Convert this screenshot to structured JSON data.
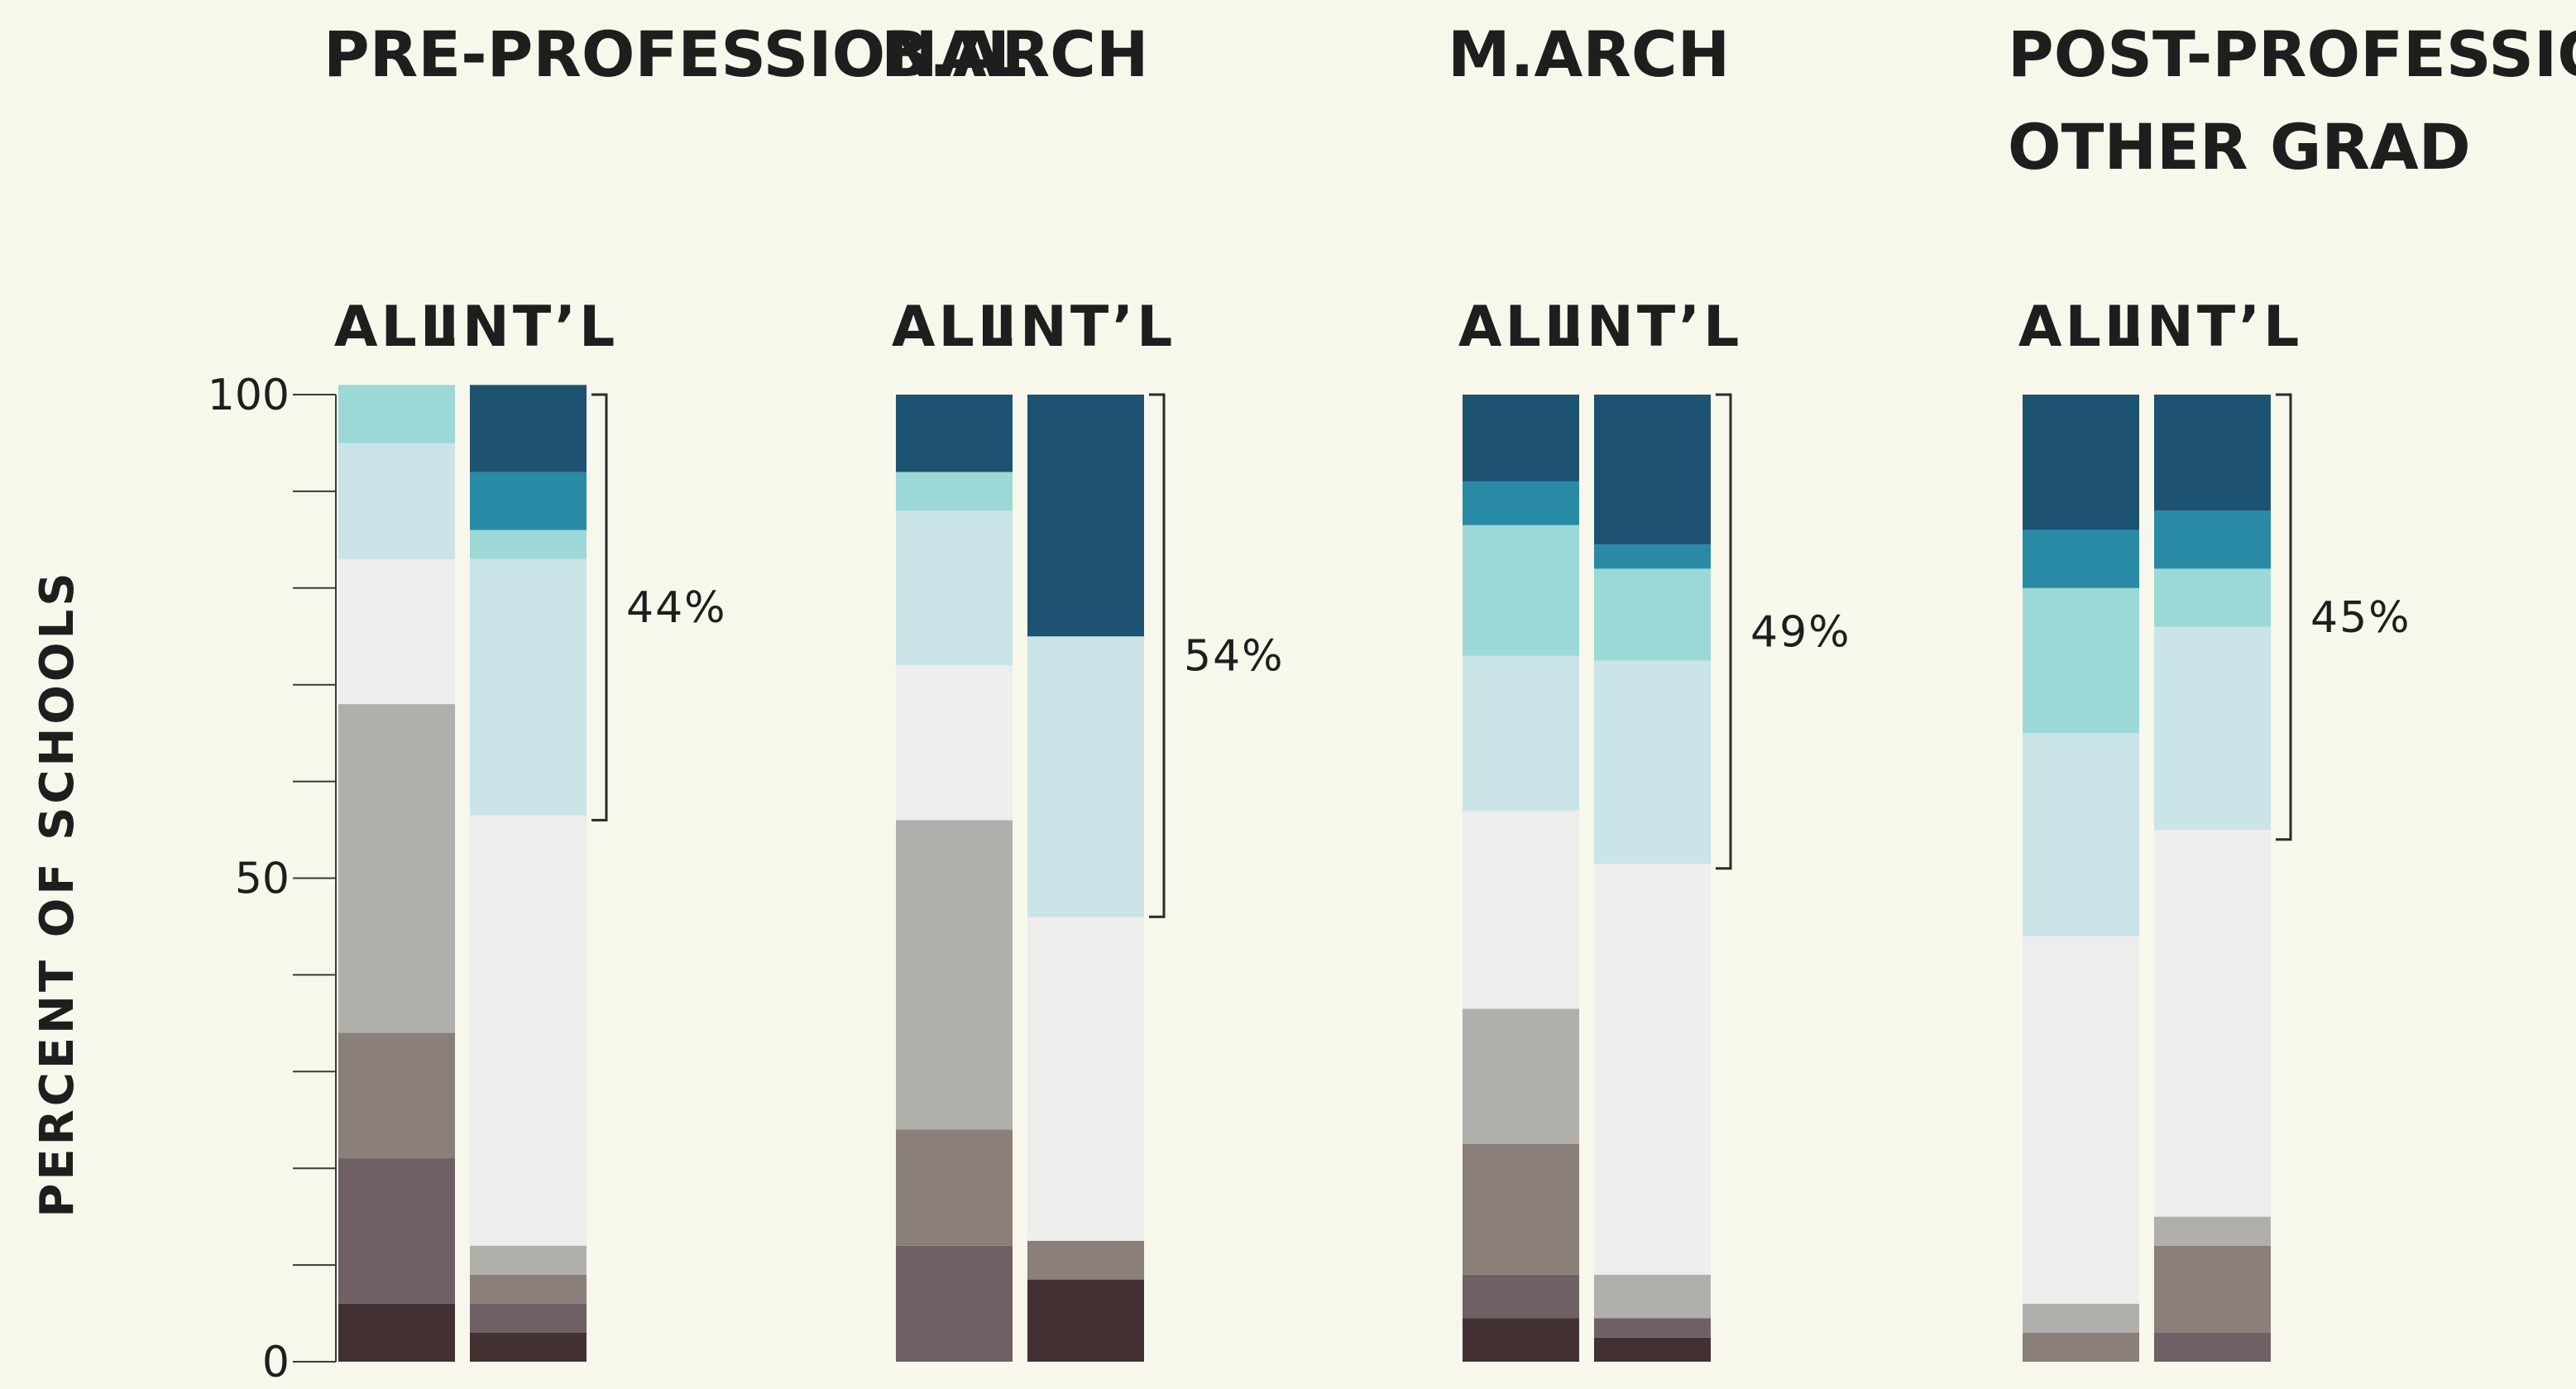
{
  "chart_data": {
    "type": "bar",
    "stacked": true,
    "ylabel": "PERCENT OF SCHOOLS",
    "ylim": [
      0,
      100
    ],
    "yticks": [
      "100",
      "50",
      "0"
    ],
    "bar_labels": [
      "ALL",
      "INT’L"
    ],
    "colors": [
      "#433032",
      "#6e6064",
      "#8a7f79",
      "#b0afab",
      "#ededec",
      "#cae4e7",
      "#9cd8d6",
      "#298aa5",
      "#1d5370"
    ],
    "groups": [
      {
        "title_lines": [
          "PRE-PROFESSIONAL"
        ],
        "bracket_label": "44%",
        "bracket_range": [
          56,
          100
        ],
        "bars": [
          {
            "label": "ALL",
            "segments": [
              6,
              15,
              13,
              34,
              15,
              12,
              6,
              0,
              0
            ]
          },
          {
            "label": "INT’L",
            "segments": [
              3,
              3,
              3,
              3,
              44.5,
              26.5,
              3,
              6,
              9
            ]
          }
        ]
      },
      {
        "title_lines": [
          "B.ARCH"
        ],
        "bracket_label": "54%",
        "bracket_range": [
          46,
          100
        ],
        "bars": [
          {
            "label": "ALL",
            "segments": [
              0,
              12,
              12,
              32,
              16,
              16,
              4,
              0,
              8
            ]
          },
          {
            "label": "INT’L",
            "segments": [
              8.5,
              0,
              4,
              0,
              33.5,
              29,
              0,
              0,
              25
            ]
          }
        ]
      },
      {
        "title_lines": [
          "M.ARCH"
        ],
        "bracket_label": "49%",
        "bracket_range": [
          51,
          100
        ],
        "bars": [
          {
            "label": "ALL",
            "segments": [
              4.5,
              4.5,
              13.5,
              14,
              20.5,
              16,
              13.5,
              4.5,
              9
            ]
          },
          {
            "label": "INT’L",
            "segments": [
              2.5,
              2,
              0,
              4.5,
              42.5,
              21,
              9.5,
              2.5,
              15.5
            ]
          }
        ]
      },
      {
        "title_lines": [
          "POST-PROFESSIONAL/",
          "OTHER GRAD"
        ],
        "bracket_label": "45%",
        "bracket_range": [
          54,
          100
        ],
        "bars": [
          {
            "label": "ALL",
            "segments": [
              0,
              0,
              3,
              3,
              38,
              21,
              15,
              6,
              14
            ]
          },
          {
            "label": "INT’L",
            "segments": [
              0,
              3,
              9,
              3,
              40,
              21,
              6,
              6,
              12
            ]
          }
        ]
      }
    ]
  }
}
